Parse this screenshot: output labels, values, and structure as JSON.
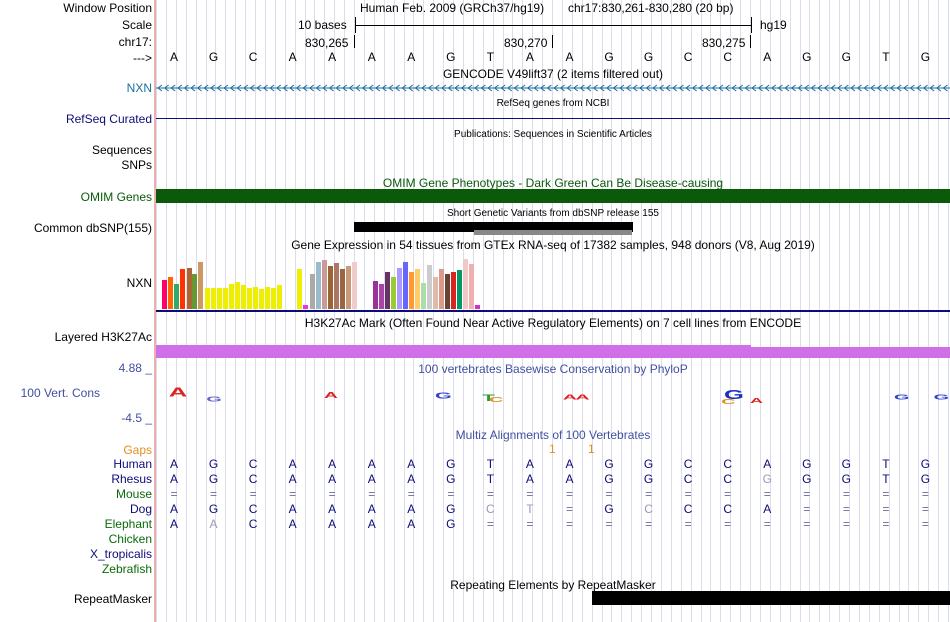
{
  "header": {
    "window_position_label": "Window Position",
    "scale_label": "Scale",
    "chrom_label": "chr17:",
    "arrow_label": "--->",
    "assembly_text": "Human Feb. 2009 (GRCh37/hg19)",
    "position_text": "chr17:830,261-830,280 (20 bp)",
    "scale_text": "10 bases",
    "db_text": "hg19",
    "ticks": [
      "830,265",
      "830,270",
      "830,275"
    ]
  },
  "sequence": [
    "A",
    "G",
    "C",
    "A",
    "A",
    "A",
    "A",
    "G",
    "T",
    "A",
    "A",
    "G",
    "G",
    "C",
    "C",
    "A",
    "G",
    "G",
    "T",
    "G"
  ],
  "tracks": {
    "gencode": {
      "title": "GENCODE V49lift37 (2 items filtered out)",
      "label": "NXN"
    },
    "refseq": {
      "title": "RefSeq genes from NCBI",
      "label": "RefSeq Curated"
    },
    "publications": {
      "title": "Publications: Sequences in Scientific Articles",
      "label": "Sequences"
    },
    "snps": {
      "label": "SNPs"
    },
    "omim": {
      "title": "OMIM Gene Phenotypes - Dark Green Can Be Disease-causing",
      "label": "OMIM Genes"
    },
    "dbsnp": {
      "title": "Short Genetic Variants from dbSNP release 155",
      "label": "Common dbSNP(155)"
    },
    "gtex": {
      "title": "Gene Expression in 54 tissues from GTEx RNA-seq of 17382 samples, 948 donors (V8, Aug 2019)",
      "label": "NXN"
    },
    "h3k27ac": {
      "title": "H3K27Ac Mark (Often Found Near Active Regulatory Elements) on 7 cell lines from ENCODE",
      "label": "Layered H3K27Ac"
    },
    "phylop": {
      "title": "100 vertebrates Basewise Conservation by PhyloP",
      "label": "100 Vert. Cons",
      "max": "4.88 _",
      "min": "-4.5 _"
    },
    "multiz": {
      "title": "Multiz Alignments of 100 Vertebrates",
      "gaps_label": "Gaps",
      "gap_marks": [
        "1",
        "1"
      ],
      "species": [
        {
          "name": "Human",
          "seq": [
            "A",
            "G",
            "C",
            "A",
            "A",
            "A",
            "A",
            "G",
            "T",
            "A",
            "A",
            "G",
            "G",
            "C",
            "C",
            "A",
            "G",
            "G",
            "T",
            "G"
          ]
        },
        {
          "name": "Rhesus",
          "seq": [
            "A",
            "G",
            "C",
            "A",
            "A",
            "A",
            "A",
            "G",
            "T",
            "A",
            "A",
            "G",
            "G",
            "C",
            "C",
            "G",
            "G",
            "G",
            "T",
            "G"
          ]
        },
        {
          "name": "Mouse",
          "seq": [
            "=",
            "=",
            "=",
            "=",
            "=",
            "=",
            "=",
            "=",
            "=",
            "=",
            "=",
            "=",
            "=",
            "=",
            "=",
            "=",
            "=",
            "=",
            "=",
            "="
          ]
        },
        {
          "name": "Dog",
          "seq": [
            "A",
            "G",
            "C",
            "A",
            "A",
            "A",
            "A",
            "G",
            "C",
            "T",
            "=",
            "G",
            "C",
            "C",
            "C",
            "A",
            "=",
            "=",
            "=",
            "="
          ]
        },
        {
          "name": "Elephant",
          "seq": [
            "A",
            "A",
            "C",
            "A",
            "A",
            "A",
            "A",
            "G",
            "=",
            "=",
            "=",
            "=",
            "=",
            "=",
            "=",
            "=",
            "=",
            "=",
            "=",
            "="
          ]
        },
        {
          "name": "Chicken",
          "seq": []
        },
        {
          "name": "X_tropicalis",
          "seq": []
        },
        {
          "name": "Zebrafish",
          "seq": []
        }
      ]
    },
    "repeatmasker": {
      "title": "Repeating Elements by RepeatMasker",
      "label": "RepeatMasker"
    }
  },
  "colors": {
    "gencode": "#1a6ea0",
    "refseq": "#0c0c78",
    "omim": "#0a5a0a",
    "h3k27ac": "#d070e8",
    "phylop": "#4050a0",
    "gaps": "#e09020",
    "separator": "#e8b0b0"
  },
  "gtex_bars": [
    {
      "v": 0.52,
      "c": "#ff0066"
    },
    {
      "v": 0.58,
      "c": "#ff6600"
    },
    {
      "v": 0.44,
      "c": "#33aa66"
    },
    {
      "v": 0.72,
      "c": "#ff3300"
    },
    {
      "v": 0.74,
      "c": "#aa6633"
    },
    {
      "v": 0.62,
      "c": "#669933"
    },
    {
      "v": 0.84,
      "c": "#cc9966"
    },
    {
      "v": 0.38,
      "c": "#eeee00"
    },
    {
      "v": 0.38,
      "c": "#eeee00"
    },
    {
      "v": 0.38,
      "c": "#eeee00"
    },
    {
      "v": 0.38,
      "c": "#eeee00"
    },
    {
      "v": 0.44,
      "c": "#eeee00"
    },
    {
      "v": 0.48,
      "c": "#eeee00"
    },
    {
      "v": 0.42,
      "c": "#eeee00"
    },
    {
      "v": 0.38,
      "c": "#eeee00"
    },
    {
      "v": 0.4,
      "c": "#eeee00"
    },
    {
      "v": 0.36,
      "c": "#eeee00"
    },
    {
      "v": 0.4,
      "c": "#eeee00"
    },
    {
      "v": 0.38,
      "c": "#eeee00"
    },
    {
      "v": 0.42,
      "c": "#eeee00"
    },
    {
      "v": 0.72,
      "c": "#eeee00"
    },
    {
      "v": 0.08,
      "c": "#ee33ee"
    },
    {
      "v": 0.62,
      "c": "#aaaaaa"
    },
    {
      "v": 0.84,
      "c": "#99bbcc"
    },
    {
      "v": 0.88,
      "c": "#cc9999"
    },
    {
      "v": 0.76,
      "c": "#996633"
    },
    {
      "v": 0.82,
      "c": "#aa7766"
    },
    {
      "v": 0.72,
      "c": "#996644"
    },
    {
      "v": 0.76,
      "c": "#cc9977"
    },
    {
      "v": 0.84,
      "c": "#eecccc"
    },
    {
      "v": 0.5,
      "c": "#993399"
    },
    {
      "v": 0.44,
      "c": "#aa44aa"
    },
    {
      "v": 0.66,
      "c": "#663366"
    },
    {
      "v": 0.58,
      "c": "#99cc33"
    },
    {
      "v": 0.74,
      "c": "#aa99ff"
    },
    {
      "v": 0.84,
      "c": "#6666ff"
    },
    {
      "v": 0.66,
      "c": "#ff9933"
    },
    {
      "v": 0.72,
      "c": "#ffcc66"
    },
    {
      "v": 0.46,
      "c": "#aaddaa"
    },
    {
      "v": 0.78,
      "c": "#cccccc"
    },
    {
      "v": 0.58,
      "c": "#ddbbaa"
    },
    {
      "v": 0.72,
      "c": "#dd9988"
    },
    {
      "v": 0.62,
      "c": "#664433"
    },
    {
      "v": 0.66,
      "c": "#dd2222"
    },
    {
      "v": 0.7,
      "c": "#009966"
    },
    {
      "v": 0.9,
      "c": "#f0c8c8"
    },
    {
      "v": 0.8,
      "c": "#f0b0b0"
    },
    {
      "v": 0.08,
      "c": "#cc33cc"
    }
  ]
}
